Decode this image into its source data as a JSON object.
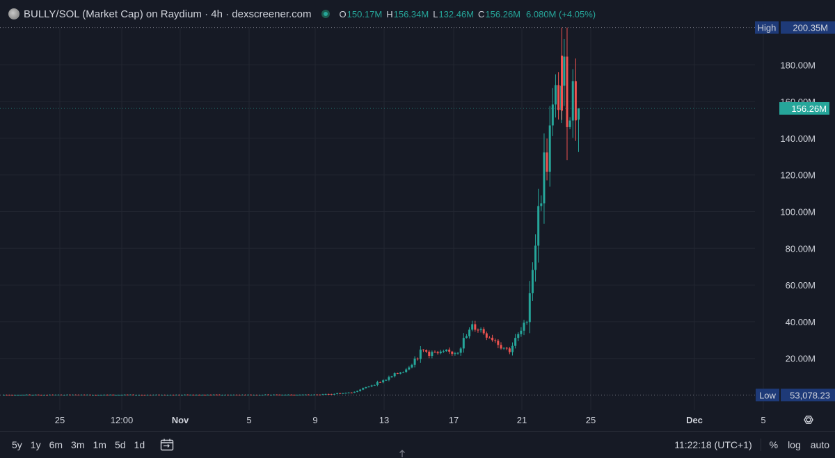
{
  "header": {
    "title": "BULLY/SOL (Market Cap) on Raydium · 4h · dexscreener.com",
    "ohlc": {
      "o_label": "O",
      "o_value": "150.17M",
      "h_label": "H",
      "h_value": "156.34M",
      "l_label": "L",
      "l_value": "132.46M",
      "c_label": "C",
      "c_value": "156.26M",
      "change": "6.080M (+4.05%)"
    }
  },
  "price_axis": {
    "ticks": [
      "20.00M",
      "40.00M",
      "60.00M",
      "80.00M",
      "100.00M",
      "120.00M",
      "140.00M",
      "160.00M",
      "180.00M"
    ],
    "high_label": "High",
    "high_value": "200.35M",
    "low_label": "Low",
    "low_value": "53,078.23",
    "current_value": "156.26M"
  },
  "time_axis": {
    "ticks": [
      "25",
      "12:00",
      "Nov",
      "5",
      "9",
      "13",
      "17",
      "21",
      "25",
      "Dec",
      "5"
    ]
  },
  "bottom_bar": {
    "ranges": [
      "5y",
      "1y",
      "6m",
      "3m",
      "1m",
      "5d",
      "1d"
    ],
    "clock": "11:22:18 (UTC+1)",
    "percent": "%",
    "log": "log",
    "auto": "auto"
  },
  "colors": {
    "background": "#161a25",
    "up": "#26a69a",
    "down": "#ef5350",
    "grid": "#222631",
    "axis_label_bg": "#1e3a78"
  },
  "chart_data": {
    "type": "candlestick",
    "title": "BULLY/SOL (Market Cap) on Raydium · 4h · dexscreener.com",
    "interval": "4h",
    "unit": "M",
    "ylim": [
      0,
      210
    ],
    "y_ticks": [
      20,
      40,
      60,
      80,
      100,
      120,
      140,
      160,
      180
    ],
    "high": 200.35,
    "low": 0.053078,
    "last_close": 156.26,
    "x_ticks": [
      "25",
      "12:00",
      "Nov",
      "5",
      "9",
      "13",
      "17",
      "21",
      "25",
      "Dec",
      "5"
    ],
    "last_bar": {
      "open": 150.17,
      "high": 156.34,
      "low": 132.46,
      "close": 156.26,
      "change": 6.08,
      "change_pct": 4.05
    },
    "close_by_date": [
      {
        "date": "Oct 25",
        "value": 0.1
      },
      {
        "date": "Nov 1",
        "value": 0.1
      },
      {
        "date": "Nov 9",
        "value": 0.2
      },
      {
        "date": "Nov 11",
        "value": 1.5
      },
      {
        "date": "Nov 13",
        "value": 9
      },
      {
        "date": "Nov 14",
        "value": 14
      },
      {
        "date": "Nov 15",
        "value": 24
      },
      {
        "date": "Nov 16",
        "value": 22
      },
      {
        "date": "Nov 17",
        "value": 24
      },
      {
        "date": "Nov 18",
        "value": 38
      },
      {
        "date": "Nov 19",
        "value": 32
      },
      {
        "date": "Nov 20",
        "value": 24
      },
      {
        "date": "Nov 21",
        "value": 38
      },
      {
        "date": "Nov 22",
        "value": 120
      },
      {
        "date": "Nov 23",
        "value": 170
      },
      {
        "date": "Nov 24",
        "value": 156.26
      }
    ]
  }
}
